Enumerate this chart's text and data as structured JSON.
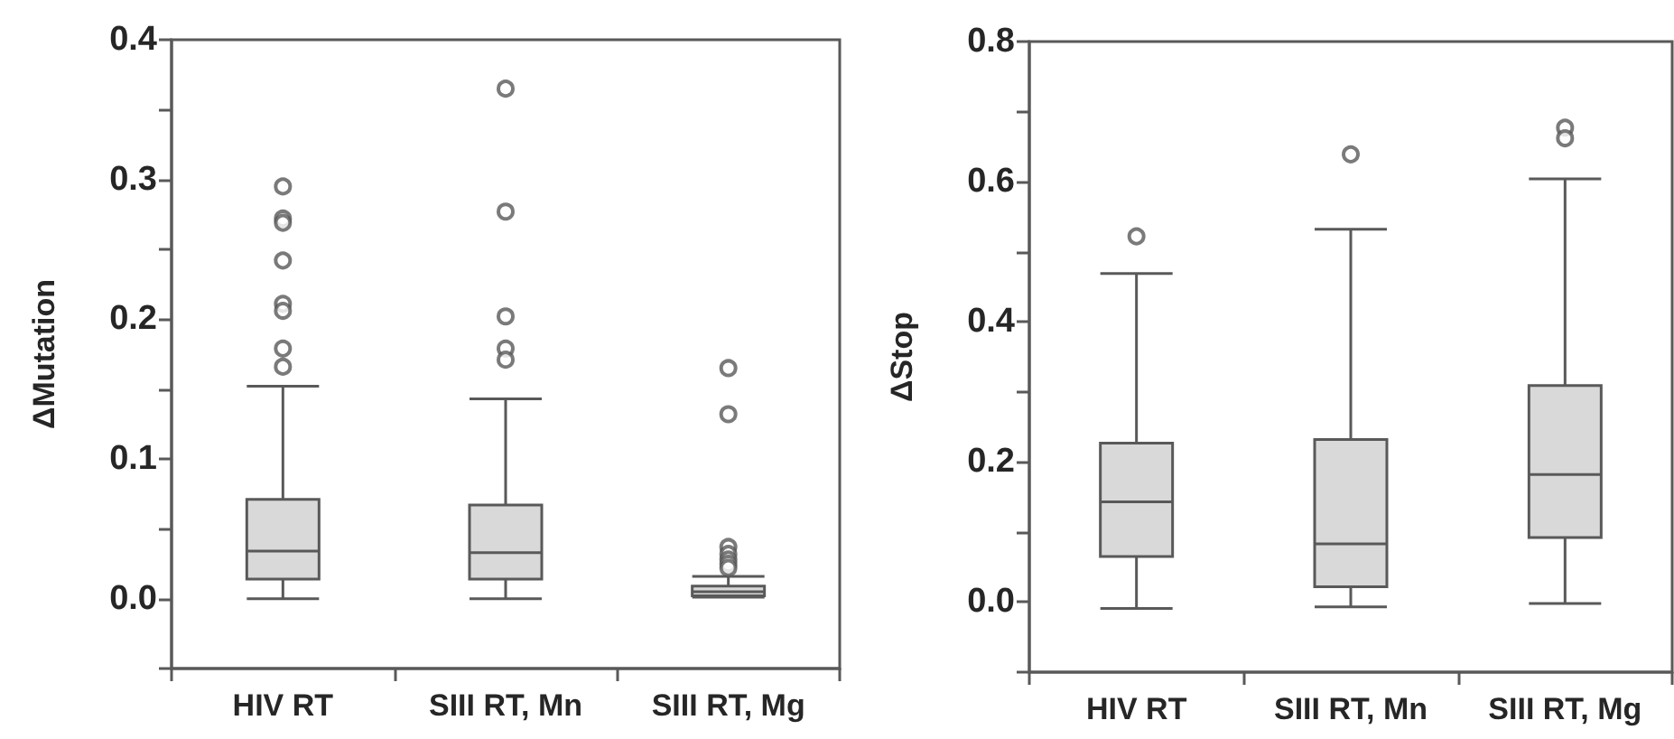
{
  "chart_data": [
    {
      "type": "box",
      "ylabel": "ΔMutation",
      "categories": [
        "HIV RT",
        "SIII RT, Mn",
        "SIII RT, Mg"
      ],
      "color": "#d9d9d9",
      "marker": "circle",
      "boxes": [
        {
          "low": 0.0,
          "q1": 0.014,
          "median": 0.034,
          "q3": 0.071,
          "high": 0.152,
          "outliers": [
            0.295,
            0.272,
            0.269,
            0.242,
            0.211,
            0.206,
            0.179,
            0.166
          ]
        },
        {
          "low": 0.0,
          "q1": 0.014,
          "median": 0.033,
          "q3": 0.067,
          "high": 0.143,
          "outliers": [
            0.365,
            0.277,
            0.202,
            0.179,
            0.171
          ]
        },
        {
          "low": 0.001,
          "q1": 0.002,
          "median": 0.005,
          "q3": 0.009,
          "high": 0.016,
          "outliers": [
            0.165,
            0.132,
            0.037,
            0.032,
            0.028,
            0.025,
            0.022
          ]
        }
      ],
      "ylim": [
        -0.05,
        0.4
      ],
      "yticks": [
        {
          "value": -0.05,
          "label": null
        },
        {
          "value": 0,
          "label": "0.0"
        },
        {
          "value": 0.05,
          "label": null
        },
        {
          "value": 0.1,
          "label": "0.1"
        },
        {
          "value": 0.15,
          "label": null
        },
        {
          "value": 0.2,
          "label": "0.2"
        },
        {
          "value": 0.25,
          "label": null
        },
        {
          "value": 0.3,
          "label": "0.3"
        },
        {
          "value": 0.35,
          "label": null
        },
        {
          "value": 0.4,
          "label": "0.4"
        }
      ]
    },
    {
      "type": "box",
      "ylabel": "ΔStop",
      "categories": [
        "HIV RT",
        "SIII RT, Mn",
        "SIII RT, Mg"
      ],
      "color": "#d9d9d9",
      "marker": "circle",
      "boxes": [
        {
          "low": -0.009,
          "q1": 0.065,
          "median": 0.143,
          "q3": 0.227,
          "high": 0.469,
          "outliers": [
            0.522
          ]
        },
        {
          "low": -0.007,
          "q1": 0.022,
          "median": 0.083,
          "q3": 0.232,
          "high": 0.532,
          "outliers": [
            0.639
          ]
        },
        {
          "low": -0.002,
          "q1": 0.092,
          "median": 0.182,
          "q3": 0.309,
          "high": 0.604,
          "outliers": [
            0.677,
            0.662
          ]
        }
      ],
      "ylim": [
        -0.1,
        0.8
      ],
      "yticks": [
        {
          "value": -0.1,
          "label": null
        },
        {
          "value": 0,
          "label": "0.0"
        },
        {
          "value": 0.1,
          "label": null
        },
        {
          "value": 0.2,
          "label": "0.2"
        },
        {
          "value": 0.3,
          "label": null
        },
        {
          "value": 0.4,
          "label": "0.4"
        },
        {
          "value": 0.5,
          "label": null
        },
        {
          "value": 0.6,
          "label": "0.6"
        },
        {
          "value": 0.7,
          "label": null
        },
        {
          "value": 0.8,
          "label": "0.8"
        }
      ]
    }
  ]
}
